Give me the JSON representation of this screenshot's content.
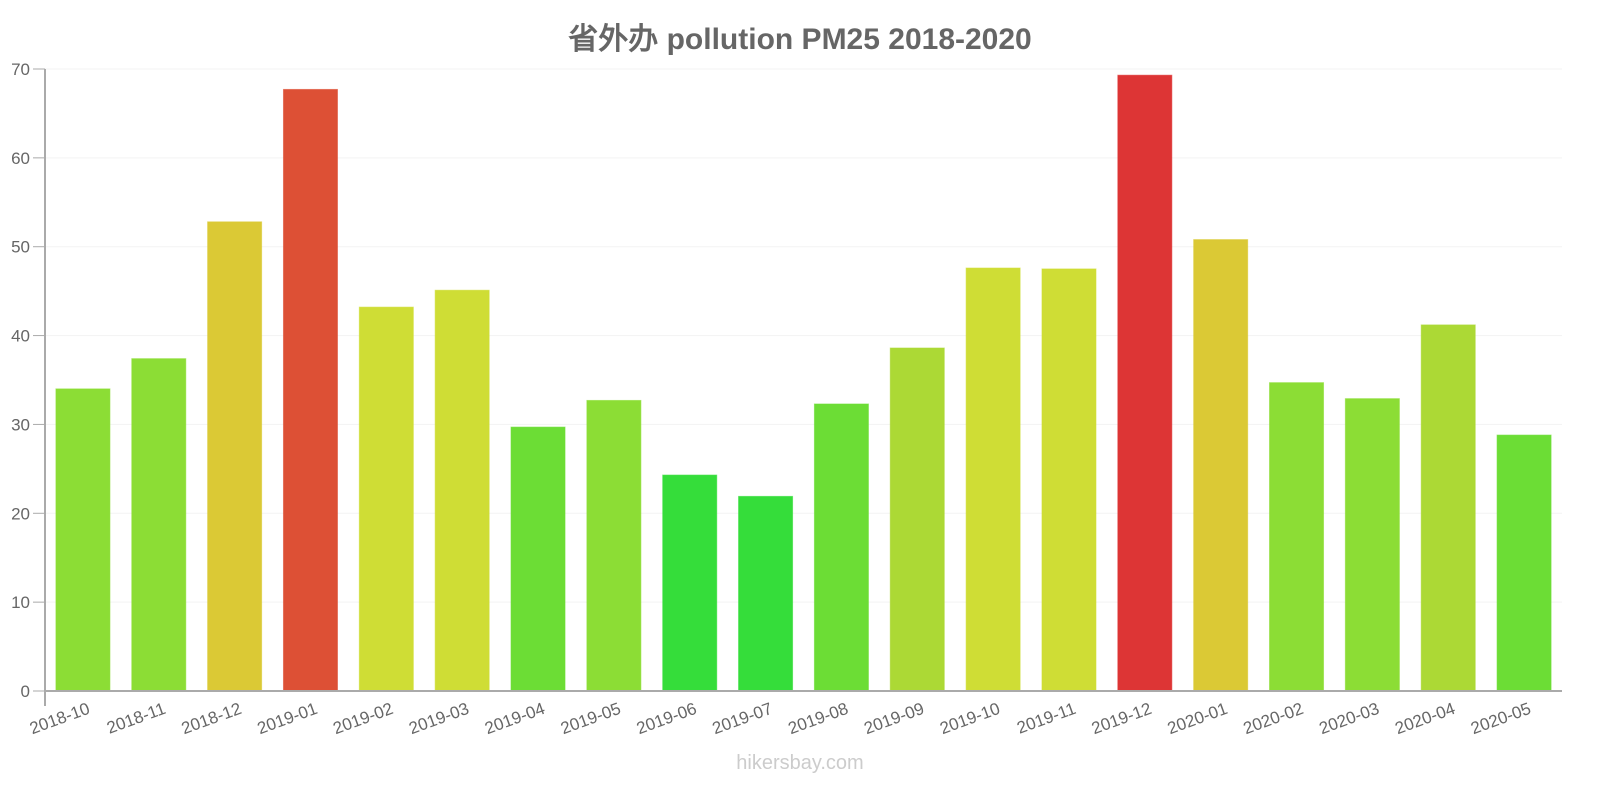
{
  "title": "省外办 pollution PM25 2018-2020",
  "watermark": "hikersbay.com",
  "chart_data": {
    "type": "bar",
    "title": "省外办 pollution PM25 2018-2020",
    "xlabel": "",
    "ylabel": "",
    "ylim": [
      0,
      70
    ],
    "yticks": [
      0,
      10,
      20,
      30,
      40,
      50,
      60,
      70
    ],
    "grid": true,
    "legend": "none",
    "categories": [
      "2018-10",
      "2018-11",
      "2018-12",
      "2019-01",
      "2019-02",
      "2019-03",
      "2019-04",
      "2019-05",
      "2019-06",
      "2019-07",
      "2019-08",
      "2019-09",
      "2019-10",
      "2019-11",
      "2019-12",
      "2020-01",
      "2020-02",
      "2020-03",
      "2020-04",
      "2020-05"
    ],
    "values": [
      34,
      37.4,
      52.8,
      67.7,
      43.2,
      45.1,
      29.7,
      32.7,
      24.3,
      21.9,
      32.3,
      38.6,
      47.6,
      47.5,
      69.3,
      50.8,
      34.7,
      32.9,
      41.2,
      28.8
    ],
    "colors": [
      "#8cdd35",
      "#8cdd35",
      "#dbc935",
      "#dd5035",
      "#cfdd35",
      "#cfdd35",
      "#6cdd35",
      "#8cdd35",
      "#35dd3a",
      "#35dd3a",
      "#6cdd35",
      "#acd935",
      "#cfdd35",
      "#cfdd35",
      "#dd3535",
      "#dbc935",
      "#8cdd35",
      "#8cdd35",
      "#acd935",
      "#6cdd35"
    ]
  }
}
